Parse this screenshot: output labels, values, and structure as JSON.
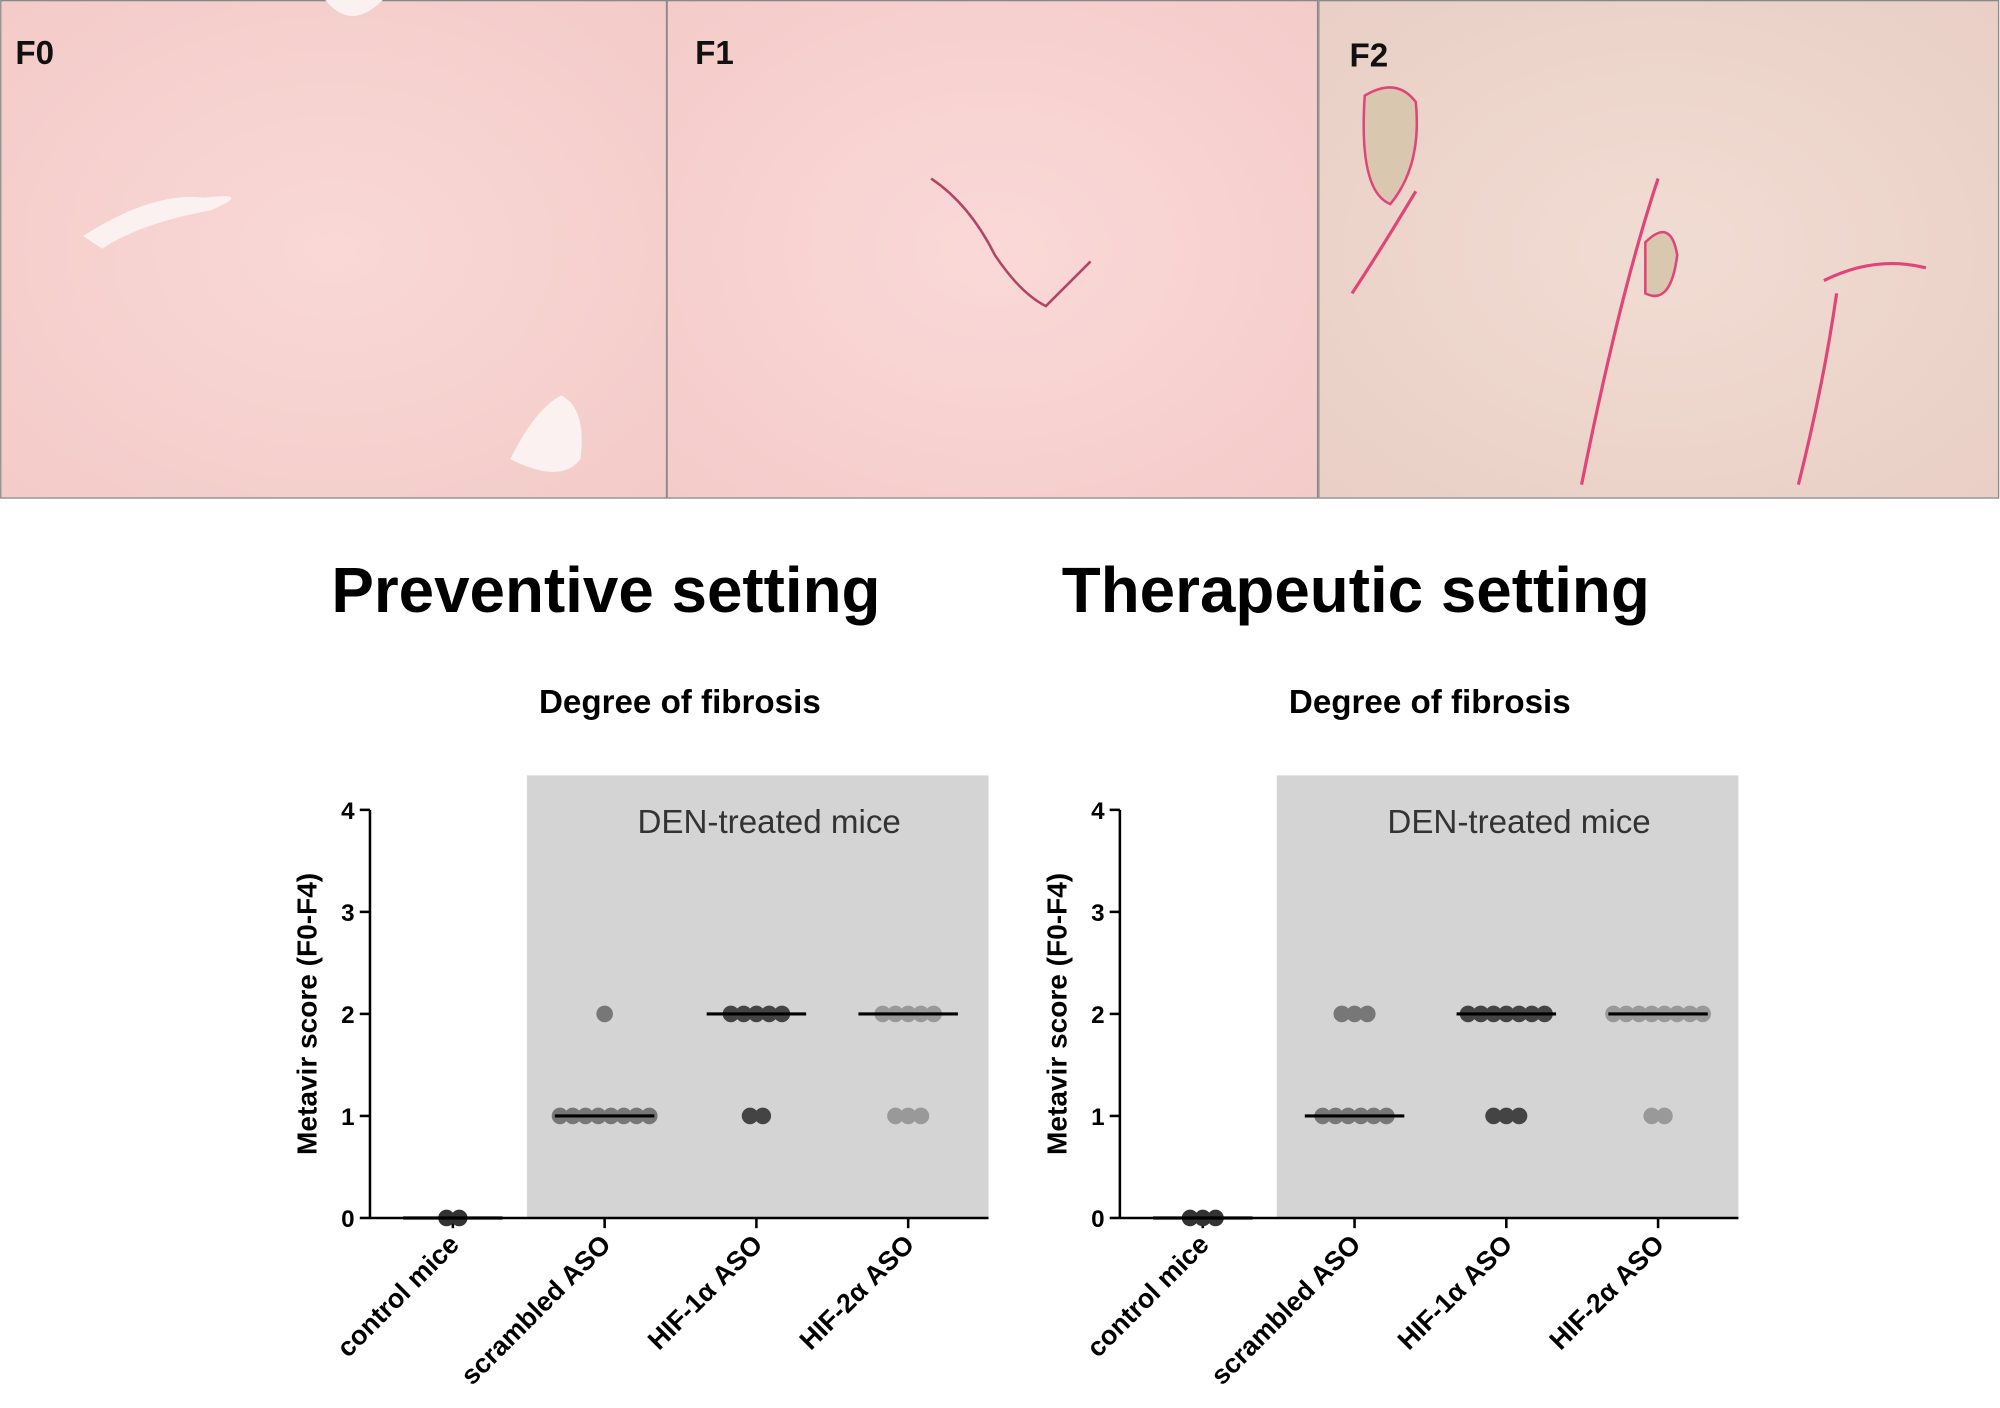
{
  "panels": [
    {
      "label": "F0"
    },
    {
      "label": "F1"
    },
    {
      "label": "F2"
    }
  ],
  "chart_data": [
    {
      "type": "dot",
      "heading": "Preventive setting",
      "title": "Degree of fibrosis",
      "ylabel": "Metavir score (F0-F4)",
      "annotation": "DEN-treated mice",
      "categories": [
        "control mice",
        "scrambled ASO",
        "HIF-1α ASO",
        "HIF-2α ASO"
      ],
      "colors": [
        "#333333",
        "#777777",
        "#444444",
        "#999999"
      ],
      "values": [
        [
          0,
          0
        ],
        [
          2,
          1,
          1,
          1,
          1,
          1,
          1,
          1,
          1
        ],
        [
          2,
          2,
          2,
          2,
          2,
          1,
          1
        ],
        [
          2,
          2,
          2,
          2,
          2,
          1,
          1,
          1
        ]
      ],
      "medians": [
        0,
        1,
        2,
        2
      ],
      "ylim": [
        0,
        4
      ],
      "yticks": [
        0,
        1,
        2,
        3,
        4
      ]
    },
    {
      "type": "dot",
      "heading": "Therapeutic setting",
      "title": "Degree of fibrosis",
      "ylabel": "Metavir score (F0-F4)",
      "annotation": "DEN-treated mice",
      "categories": [
        "control mice",
        "scrambled ASO",
        "HIF-1α ASO",
        "HIF-2α ASO"
      ],
      "colors": [
        "#333333",
        "#777777",
        "#444444",
        "#999999"
      ],
      "values": [
        [
          0,
          0,
          0
        ],
        [
          2,
          2,
          2,
          1,
          1,
          1,
          1,
          1,
          1
        ],
        [
          2,
          2,
          2,
          2,
          2,
          2,
          2,
          1,
          1,
          1
        ],
        [
          2,
          2,
          2,
          2,
          2,
          2,
          2,
          2,
          1,
          1
        ]
      ],
      "medians": [
        0,
        1,
        2,
        2
      ],
      "ylim": [
        0,
        4
      ],
      "yticks": [
        0,
        1,
        2,
        3,
        4
      ]
    }
  ]
}
